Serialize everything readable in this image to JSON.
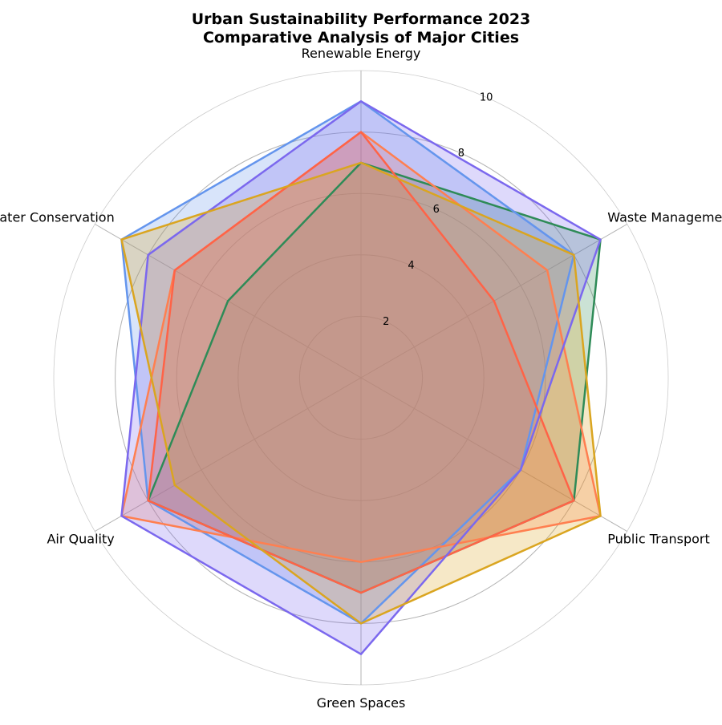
{
  "chart_data": {
    "type": "radar",
    "title_line1": "Urban Sustainability Performance 2023",
    "title_line2": "Comparative Analysis of Major Cities",
    "axes": [
      "Renewable Energy",
      "Waste Management",
      "Public Transport",
      "Green Spaces",
      "Air Quality",
      "Water Conservation"
    ],
    "rlim": [
      0,
      10
    ],
    "radial_ticks": [
      2,
      4,
      6,
      8,
      10
    ],
    "grid": true,
    "legend": "none",
    "series": [
      {
        "color": "#2E8B57",
        "values": [
          7,
          9,
          8,
          7,
          8,
          5
        ]
      },
      {
        "color": "#6495ED",
        "values": [
          9,
          8,
          6,
          8,
          8,
          9
        ]
      },
      {
        "color": "#FF7F50",
        "values": [
          8,
          7,
          9,
          6,
          9,
          7
        ]
      },
      {
        "color": "#FF6347",
        "values": [
          8,
          5,
          8,
          7,
          8,
          7
        ]
      },
      {
        "color": "#7B68EE",
        "values": [
          9,
          9,
          6,
          9,
          9,
          8
        ]
      },
      {
        "color": "#DAA520",
        "values": [
          7,
          8,
          9,
          8,
          7,
          9
        ]
      }
    ]
  }
}
